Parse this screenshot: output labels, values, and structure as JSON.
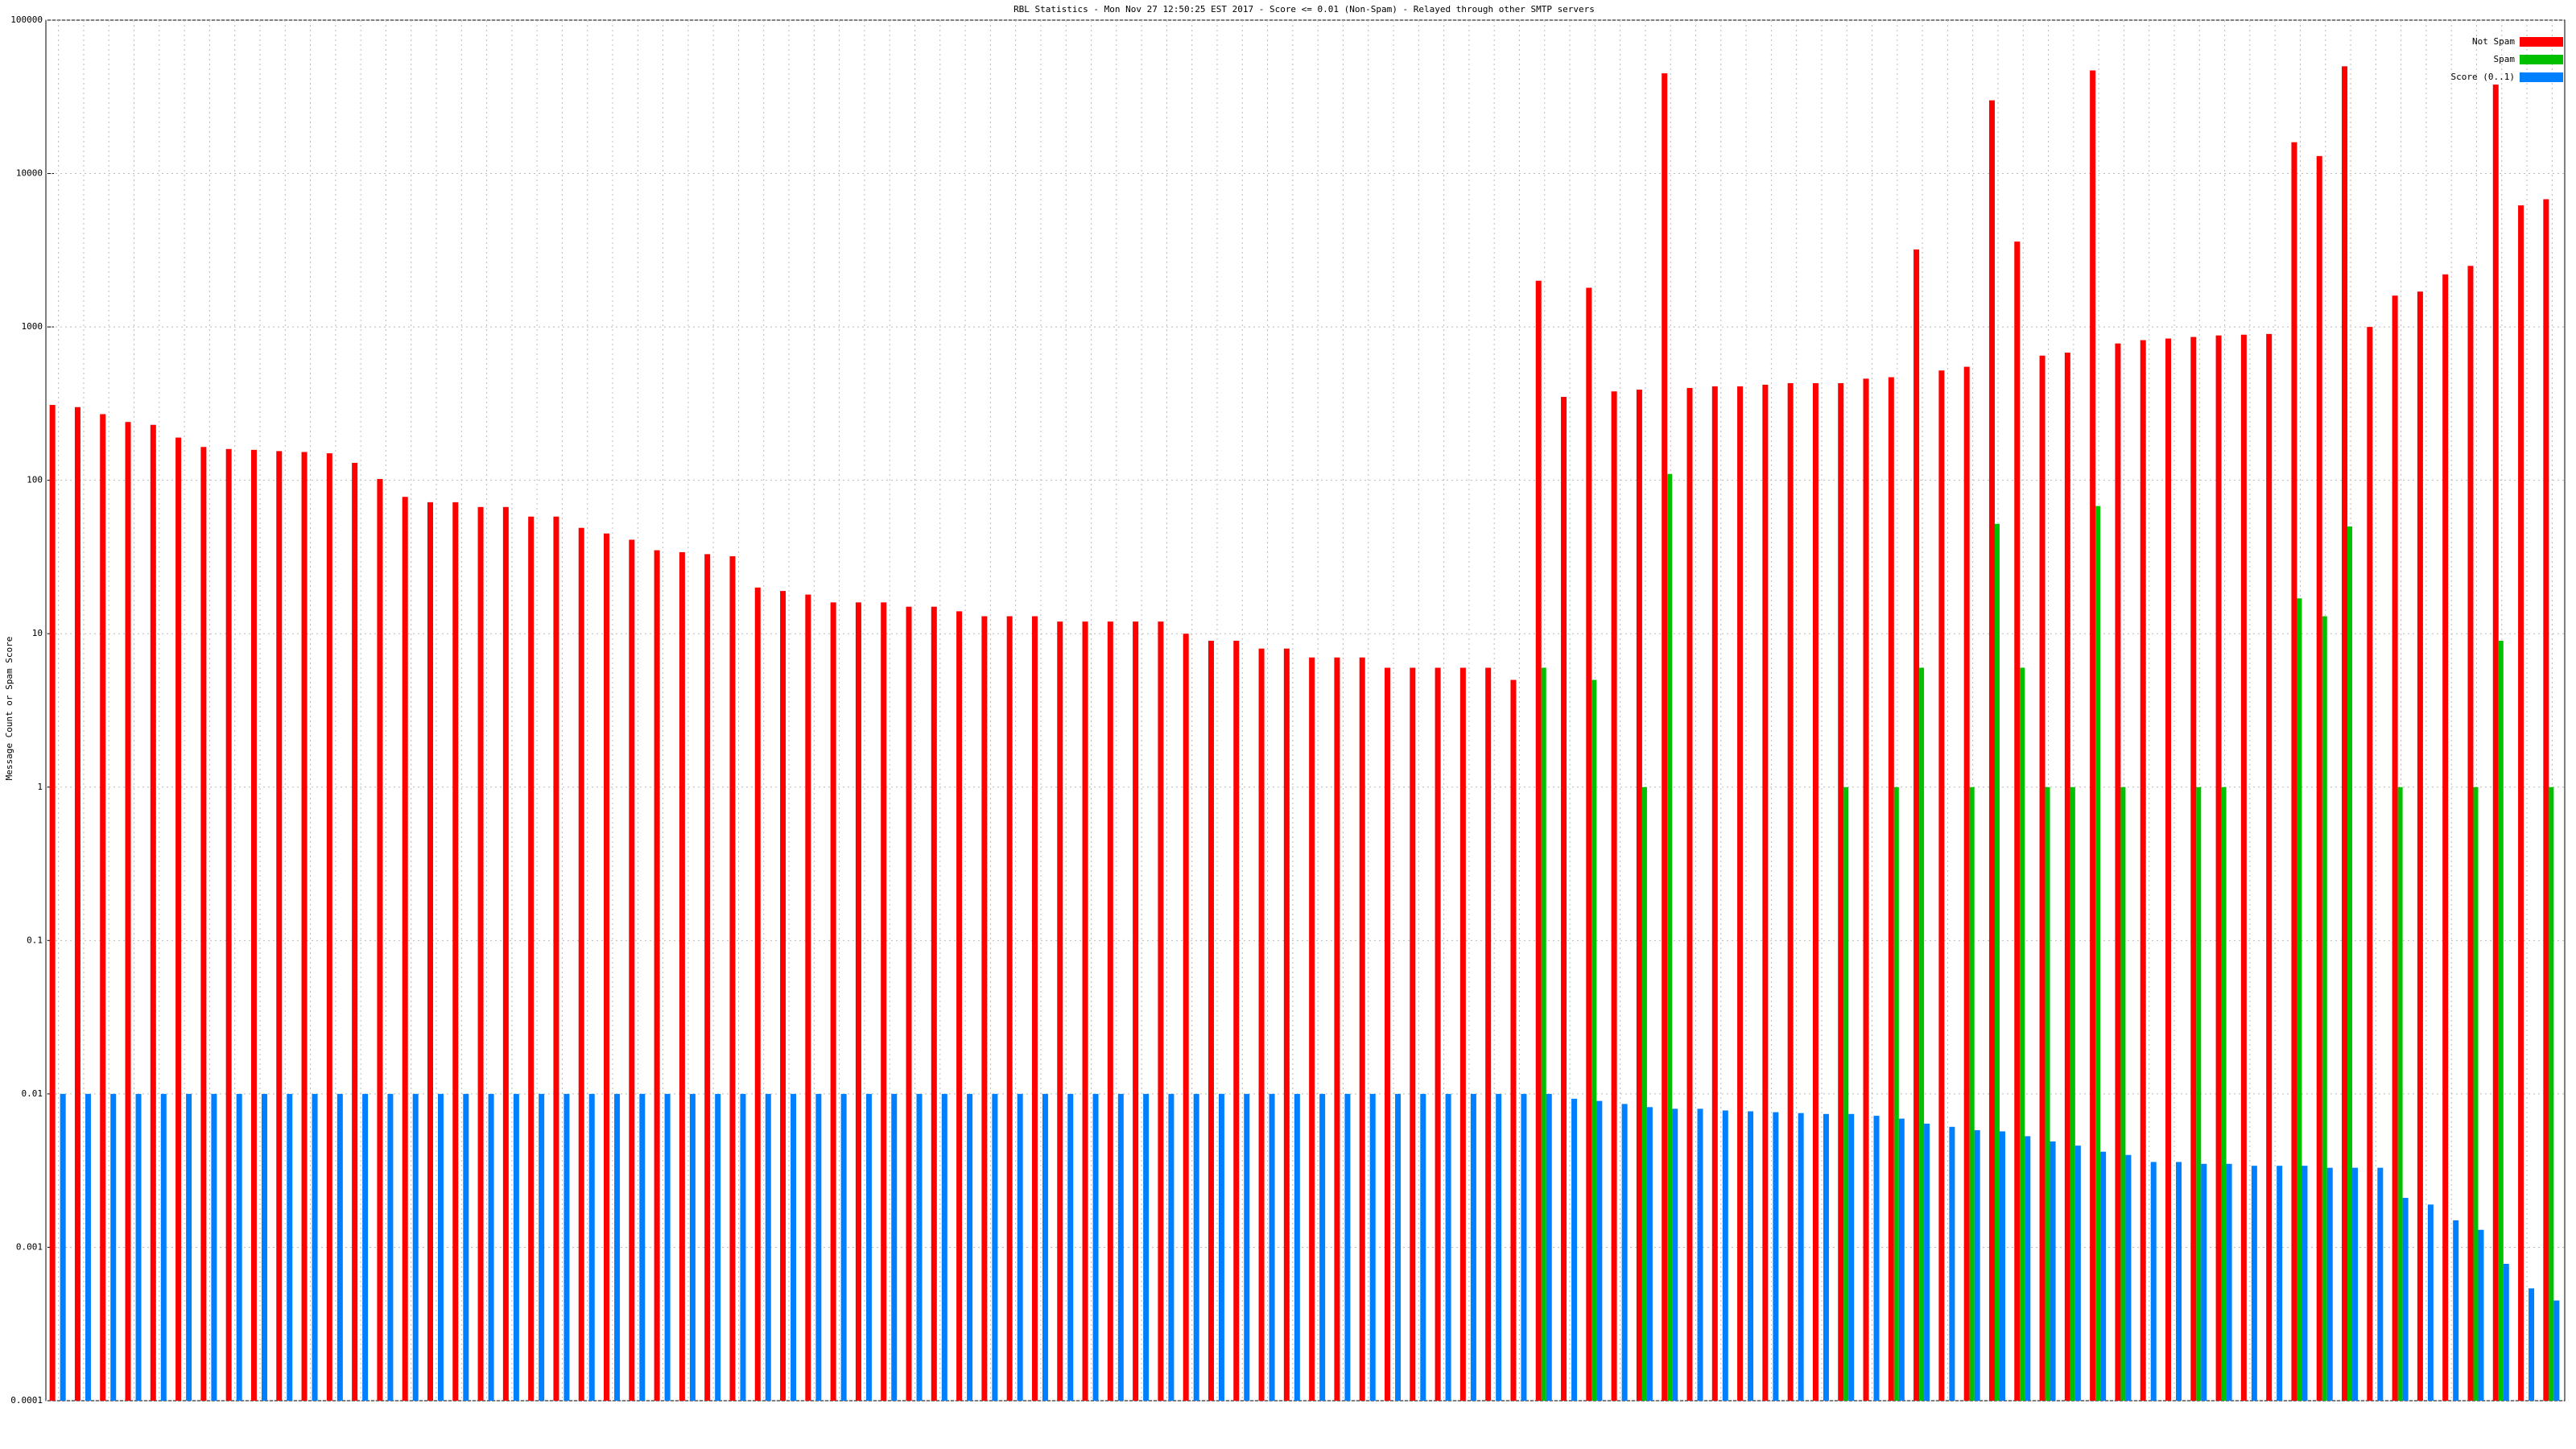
{
  "chart_data": {
    "type": "bar",
    "title": "RBL Statistics - Mon Nov 27 12:50:25 EST 2017 - Score <= 0.01 (Non-Spam) - Relayed through other SMTP servers",
    "ylabel": "Message Count or Spam Score",
    "log_scale": true,
    "grid": true,
    "legend": "top-right",
    "ylim": [
      0.0001,
      100000
    ],
    "yticks": [
      0.0001,
      0.001,
      0.01,
      0.1,
      1,
      10,
      100,
      1000,
      10000,
      100000
    ],
    "categories": [
      null,
      null,
      null,
      null,
      null,
      null,
      null,
      null,
      null,
      null,
      null,
      null,
      null,
      null,
      null,
      null,
      null,
      null,
      null,
      null,
      null,
      null,
      null,
      null,
      null,
      null,
      null,
      null,
      null,
      null,
      null,
      null,
      null,
      null,
      null,
      null,
      null,
      null,
      null,
      null,
      null,
      null,
      null,
      null,
      null,
      null,
      null,
      null,
      null,
      null,
      null,
      null,
      null,
      null,
      null,
      null,
      null,
      null,
      null,
      null,
      null,
      null,
      null,
      null,
      null,
      null,
      null,
      null,
      null,
      null,
      null,
      null,
      null,
      null,
      null,
      null,
      null,
      null,
      null,
      null,
      null,
      null,
      null,
      null,
      null,
      null,
      null,
      null,
      null,
      null,
      null,
      null,
      null,
      null,
      null,
      null,
      null,
      null,
      null,
      null
    ],
    "series": [
      {
        "name": "Not Spam",
        "color": "#ff0000",
        "values": [
          310,
          300,
          270,
          240,
          230,
          190,
          165,
          160,
          158,
          155,
          153,
          150,
          130,
          102,
          78,
          72,
          72,
          67,
          67,
          58,
          58,
          49,
          45,
          41,
          35,
          34,
          33,
          32,
          20,
          19,
          18,
          16,
          16,
          16,
          15,
          15,
          14,
          13,
          13,
          13,
          12,
          12,
          12,
          12,
          12,
          10,
          9,
          9,
          8,
          8,
          7,
          7,
          7,
          6,
          6,
          6,
          6,
          6,
          5,
          2000,
          350,
          1800,
          380,
          390,
          45000,
          400,
          410,
          410,
          420,
          430,
          430,
          430,
          460,
          470,
          3200,
          520,
          550,
          30000,
          3600,
          650,
          680,
          47000,
          780,
          820,
          840,
          860,
          880,
          890,
          900,
          16000,
          13000,
          50000,
          1000,
          1600,
          1700,
          2200,
          2500,
          38000,
          6200,
          6800
        ]
      },
      {
        "name": "Spam",
        "color": "#00c000",
        "values": [
          null,
          null,
          null,
          null,
          null,
          null,
          null,
          null,
          null,
          null,
          null,
          null,
          null,
          null,
          null,
          null,
          null,
          null,
          null,
          null,
          null,
          null,
          null,
          null,
          null,
          null,
          null,
          null,
          null,
          null,
          null,
          null,
          null,
          null,
          null,
          null,
          null,
          null,
          null,
          null,
          null,
          null,
          null,
          null,
          null,
          null,
          null,
          null,
          null,
          null,
          null,
          null,
          null,
          null,
          null,
          null,
          null,
          null,
          null,
          6,
          null,
          5,
          null,
          1,
          110,
          null,
          null,
          null,
          null,
          null,
          null,
          1,
          null,
          1,
          6,
          null,
          1,
          52,
          6,
          1,
          1,
          68,
          1,
          null,
          null,
          1,
          1,
          null,
          null,
          17,
          13,
          50,
          null,
          1,
          null,
          null,
          1,
          9,
          null,
          1
        ]
      },
      {
        "name": "Score (0..1)",
        "color": "#0080ff",
        "values": [
          0.01,
          0.01,
          0.01,
          0.01,
          0.01,
          0.01,
          0.01,
          0.01,
          0.01,
          0.01,
          0.01,
          0.01,
          0.01,
          0.01,
          0.01,
          0.01,
          0.01,
          0.01,
          0.01,
          0.01,
          0.01,
          0.01,
          0.01,
          0.01,
          0.01,
          0.01,
          0.01,
          0.01,
          0.01,
          0.01,
          0.01,
          0.01,
          0.01,
          0.01,
          0.01,
          0.01,
          0.01,
          0.01,
          0.01,
          0.01,
          0.01,
          0.01,
          0.01,
          0.01,
          0.01,
          0.01,
          0.01,
          0.01,
          0.01,
          0.01,
          0.01,
          0.01,
          0.01,
          0.01,
          0.01,
          0.01,
          0.01,
          0.01,
          0.01,
          0.01,
          0.0093,
          0.009,
          0.0086,
          0.0082,
          0.008,
          0.008,
          0.0078,
          0.0077,
          0.0076,
          0.0075,
          0.0074,
          0.0074,
          0.0072,
          0.0069,
          0.0064,
          0.0061,
          0.0058,
          0.0057,
          0.0053,
          0.0049,
          0.0046,
          0.0042,
          0.004,
          0.0036,
          0.0036,
          0.0035,
          0.0035,
          0.0034,
          0.0034,
          0.0034,
          0.0033,
          0.0033,
          0.0033,
          0.0021,
          0.0019,
          0.0015,
          0.0013,
          0.00078,
          0.00054,
          0.00045
        ]
      }
    ]
  }
}
